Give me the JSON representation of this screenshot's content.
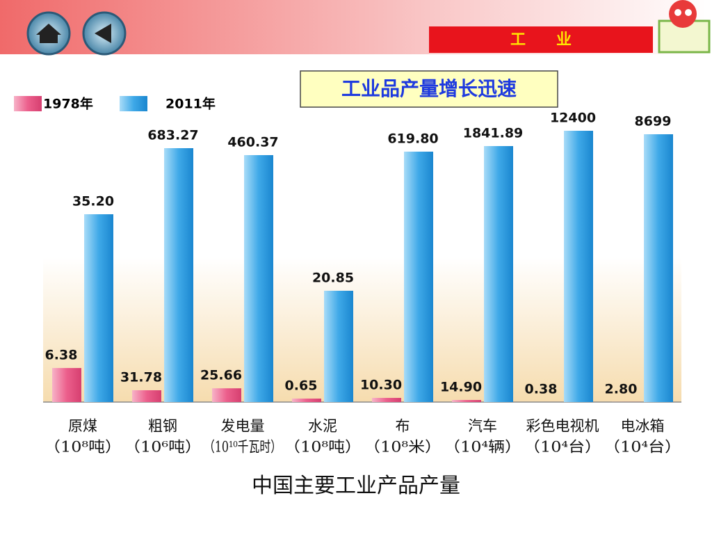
{
  "header": {
    "section": "工　　业"
  },
  "chart_data": {
    "type": "bar",
    "title": "工业品产量增长迅速",
    "caption": "中国主要工业产品产量",
    "categories": [
      "原煤",
      "粗钢",
      "发电量",
      "水泥",
      "布",
      "汽车",
      "彩色电视机",
      "电冰箱"
    ],
    "units": [
      "（10⁸吨）",
      "（10⁶吨）",
      "（10¹⁰千瓦时）",
      "（10⁸吨）",
      "（10⁸米）",
      "（10⁴辆）",
      "（10⁴台）",
      "（10⁴台）"
    ],
    "legend": "top-left",
    "series": [
      {
        "name": "1978年",
        "color": "#ec5f8c",
        "values": [
          6.38,
          31.78,
          25.66,
          0.65,
          10.3,
          14.9,
          0.38,
          2.8
        ],
        "value_labels": [
          "6.38",
          "31.78",
          "25.66",
          "0.65",
          "10.30",
          "14.90",
          "0.38",
          "2.80"
        ]
      },
      {
        "name": "2011年",
        "color": "#3fa9e8",
        "values": [
          35.2,
          683.27,
          460.37,
          20.85,
          619.8,
          1841.89,
          12400,
          8699
        ],
        "value_labels": [
          "35.20",
          "683.27",
          "460.37",
          "20.85",
          "619.80",
          "1841.89",
          "12400",
          "8699"
        ]
      }
    ]
  }
}
